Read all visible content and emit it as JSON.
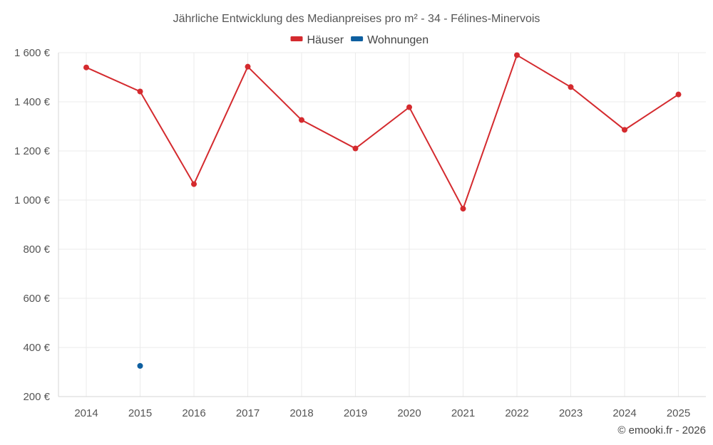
{
  "chart_data": {
    "type": "line",
    "title": "Jährliche Entwicklung des Medianpreises pro m² - 34 - Félines-Minervois",
    "x": [
      2014,
      2015,
      2016,
      2017,
      2018,
      2019,
      2020,
      2021,
      2022,
      2023,
      2024,
      2025
    ],
    "x_tick_labels": [
      "2014",
      "2015",
      "2016",
      "2017",
      "2018",
      "2019",
      "2020",
      "2021",
      "2022",
      "2023",
      "2024",
      "2025"
    ],
    "series": [
      {
        "name": "Häuser",
        "color": "#d42a2e",
        "values": [
          1540,
          1442,
          1065,
          1543,
          1326,
          1210,
          1378,
          965,
          1590,
          1460,
          1286,
          1430
        ]
      },
      {
        "name": "Wohnungen",
        "color": "#0e5fa0",
        "values": [
          null,
          325,
          null,
          null,
          null,
          null,
          null,
          null,
          null,
          null,
          null,
          null
        ]
      }
    ],
    "ylim": [
      200,
      1600
    ],
    "y_ticks": [
      200,
      400,
      600,
      800,
      1000,
      1200,
      1400,
      1600
    ],
    "y_tick_labels": [
      "200 €",
      "400 €",
      "600 €",
      "800 €",
      "1 000 €",
      "1 200 €",
      "1 400 €",
      "1 600 €"
    ],
    "xlabel": "",
    "ylabel": "",
    "grid": true,
    "legend_position": "top-center"
  },
  "credit": "© emooki.fr - 2026"
}
